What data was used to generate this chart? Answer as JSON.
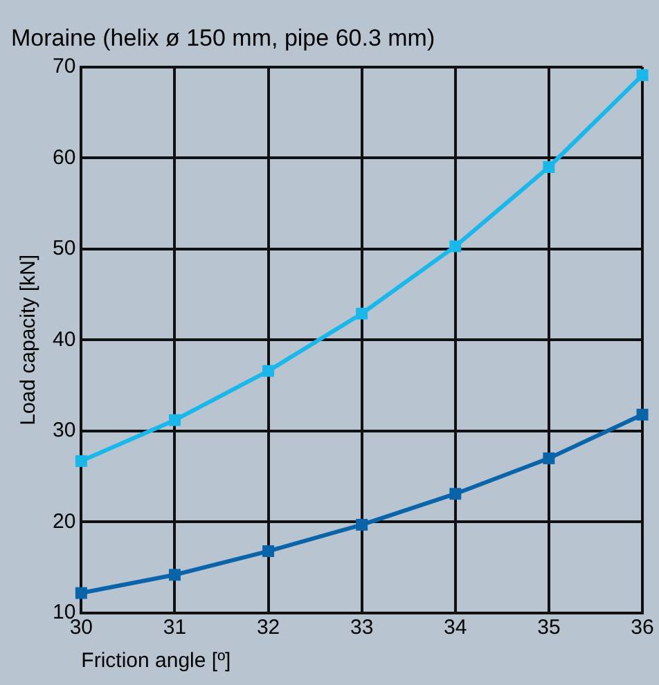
{
  "chart_data": {
    "type": "line",
    "title": "Moraine (helix ø 150 mm, pipe 60.3 mm)",
    "xlabel": "Friction angle [º]",
    "ylabel": "Load capacity [kN]",
    "x": [
      30,
      31,
      32,
      33,
      34,
      35,
      36
    ],
    "series": [
      {
        "color": "#1ab7ea",
        "values": [
          26.7,
          31.2,
          36.6,
          42.9,
          50.3,
          59.0,
          69.1
        ]
      },
      {
        "color": "#0a64aa",
        "values": [
          12.2,
          14.2,
          16.8,
          19.7,
          23.1,
          27.0,
          31.8
        ]
      }
    ],
    "xlim": [
      30,
      36
    ],
    "xticks": [
      30,
      31,
      32,
      33,
      34,
      35,
      36
    ],
    "ylim": [
      10,
      70
    ],
    "yticks": [
      10,
      20,
      30,
      40,
      50,
      60,
      70
    ],
    "grid": true,
    "legend": false,
    "marker": "square",
    "line_style": "solid"
  }
}
